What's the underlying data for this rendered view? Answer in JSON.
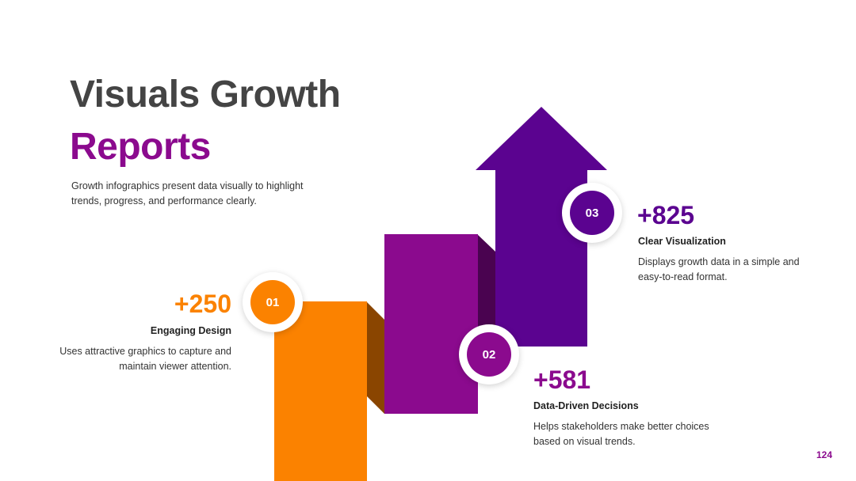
{
  "title": {
    "line1": "Visuals Growth",
    "line2": "Reports"
  },
  "subtitle": "Growth infographics present data visually to highlight trends, progress, and performance clearly.",
  "colors": {
    "orange": "#fb8200",
    "magenta": "#8b0a8e",
    "purple": "#5b0390",
    "title_gray": "#444444"
  },
  "items": [
    {
      "number": "01",
      "value": "+250",
      "label": "Engaging Design",
      "description": "Uses attractive graphics to capture and maintain viewer attention.",
      "color": "#fb8200"
    },
    {
      "number": "02",
      "value": "+581",
      "label": "Data-Driven Decisions",
      "description": "Helps stakeholders make better choices based on visual trends.",
      "color": "#8b0a8e"
    },
    {
      "number": "03",
      "value": "+825",
      "label": "Clear Visualization",
      "description": "Displays growth data in a simple and easy-to-read format.",
      "color": "#5b0390"
    }
  ],
  "page_number": "124"
}
